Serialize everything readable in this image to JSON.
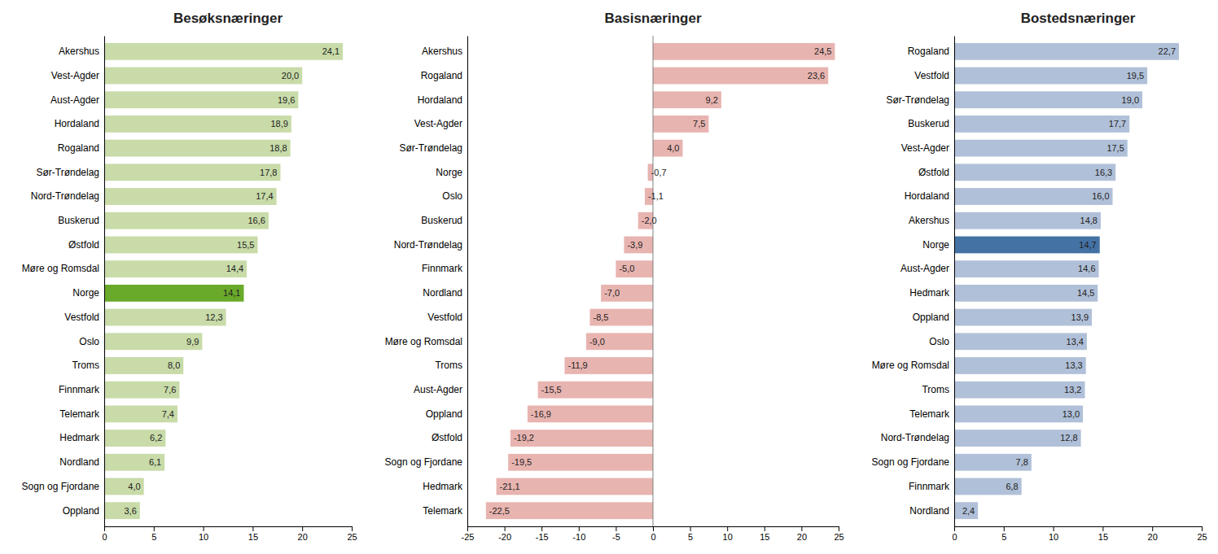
{
  "chart_data": [
    {
      "type": "bar",
      "orientation": "horizontal",
      "title": "Besøksnæringer",
      "categories": [
        "Akershus",
        "Vest-Agder",
        "Aust-Agder",
        "Hordaland",
        "Rogaland",
        "Sør-Trøndelag",
        "Nord-Trøndelag",
        "Buskerud",
        "Østfold",
        "Møre og Romsdal",
        "Norge",
        "Vestfold",
        "Oslo",
        "Troms",
        "Finnmark",
        "Telemark",
        "Hedmark",
        "Nordland",
        "Sogn og Fjordane",
        "Oppland"
      ],
      "values": [
        24.1,
        20.0,
        19.6,
        18.9,
        18.8,
        17.8,
        17.4,
        16.6,
        15.5,
        14.4,
        14.1,
        12.3,
        9.9,
        8.0,
        7.6,
        7.4,
        6.2,
        6.1,
        4.0,
        3.6
      ],
      "value_labels": [
        "24,1",
        "20,0",
        "19,6",
        "18,9",
        "18,8",
        "17,8",
        "17,4",
        "16,6",
        "15,5",
        "14,4",
        "14,1",
        "12,3",
        "9,9",
        "8,0",
        "7,6",
        "7,4",
        "6,2",
        "6,1",
        "4,0",
        "3,6"
      ],
      "colors": [
        "#c8dba8",
        "#c8dba8",
        "#c8dba8",
        "#c8dba8",
        "#c8dba8",
        "#c8dba8",
        "#c8dba8",
        "#c8dba8",
        "#c8dba8",
        "#c8dba8",
        "#6aaa2a",
        "#c8dba8",
        "#c8dba8",
        "#c8dba8",
        "#c8dba8",
        "#c8dba8",
        "#c8dba8",
        "#c8dba8",
        "#c8dba8",
        "#c8dba8"
      ],
      "xlim": [
        0,
        25
      ],
      "xticks": [
        0,
        5,
        10,
        15,
        20,
        25
      ],
      "data_labels": true,
      "grid": false
    },
    {
      "type": "bar",
      "orientation": "horizontal",
      "title": "Basisnæringer",
      "categories": [
        "Akershus",
        "Rogaland",
        "Hordaland",
        "Vest-Agder",
        "Sør-Trøndelag",
        "Norge",
        "Oslo",
        "Buskerud",
        "Nord-Trøndelag",
        "Finnmark",
        "Nordland",
        "Vestfold",
        "Møre og Romsdal",
        "Troms",
        "Aust-Agder",
        "Oppland",
        "Østfold",
        "Sogn og Fjordane",
        "Hedmark",
        "Telemark"
      ],
      "values": [
        24.5,
        23.6,
        9.2,
        7.5,
        4.0,
        -0.7,
        -1.1,
        -2.0,
        -3.9,
        -5.0,
        -7.0,
        -8.5,
        -9.0,
        -11.9,
        -15.5,
        -16.9,
        -19.2,
        -19.5,
        -21.1,
        -22.5
      ],
      "value_labels": [
        "24,5",
        "23,6",
        "9,2",
        "7,5",
        "4,0",
        "-0,7",
        "-1,1",
        "-2,0",
        "-3,9",
        "-5,0",
        "-7,0",
        "-8,5",
        "-9,0",
        "-11,9",
        "-15,5",
        "-16,9",
        "-19,2",
        "-19,5",
        "-21,1",
        "-22,5"
      ],
      "color": "#e8b4b0",
      "xlim": [
        -25,
        25
      ],
      "xticks": [
        -25,
        -20,
        -15,
        -10,
        -5,
        0,
        5,
        10,
        15,
        20,
        25
      ],
      "data_labels": true,
      "grid": false
    },
    {
      "type": "bar",
      "orientation": "horizontal",
      "title": "Bostedsnæringer",
      "categories": [
        "Rogaland",
        "Vestfold",
        "Sør-Trøndelag",
        "Buskerud",
        "Vest-Agder",
        "Østfold",
        "Hordaland",
        "Akershus",
        "Norge",
        "Aust-Agder",
        "Hedmark",
        "Oppland",
        "Oslo",
        "Møre og Romsdal",
        "Troms",
        "Telemark",
        "Nord-Trøndelag",
        "Sogn og Fjordane",
        "Finnmark",
        "Nordland"
      ],
      "values": [
        22.7,
        19.5,
        19.0,
        17.7,
        17.5,
        16.3,
        16.0,
        14.8,
        14.7,
        14.6,
        14.5,
        13.9,
        13.4,
        13.3,
        13.2,
        13.0,
        12.8,
        7.8,
        6.8,
        2.4
      ],
      "value_labels": [
        "22,7",
        "19,5",
        "19,0",
        "17,7",
        "17,5",
        "16,3",
        "16,0",
        "14,8",
        "14,7",
        "14,6",
        "14,5",
        "13,9",
        "13,4",
        "13,3",
        "13,2",
        "13,0",
        "12,8",
        "7,8",
        "6,8",
        "2,4"
      ],
      "colors": [
        "#b0c0d8",
        "#b0c0d8",
        "#b0c0d8",
        "#b0c0d8",
        "#b0c0d8",
        "#b0c0d8",
        "#b0c0d8",
        "#b0c0d8",
        "#4472a4",
        "#b0c0d8",
        "#b0c0d8",
        "#b0c0d8",
        "#b0c0d8",
        "#b0c0d8",
        "#b0c0d8",
        "#b0c0d8",
        "#b0c0d8",
        "#b0c0d8",
        "#b0c0d8",
        "#b0c0d8"
      ],
      "xlim": [
        0,
        25
      ],
      "xticks": [
        0,
        5,
        10,
        15,
        20,
        25
      ],
      "data_labels": true,
      "grid": false
    }
  ]
}
